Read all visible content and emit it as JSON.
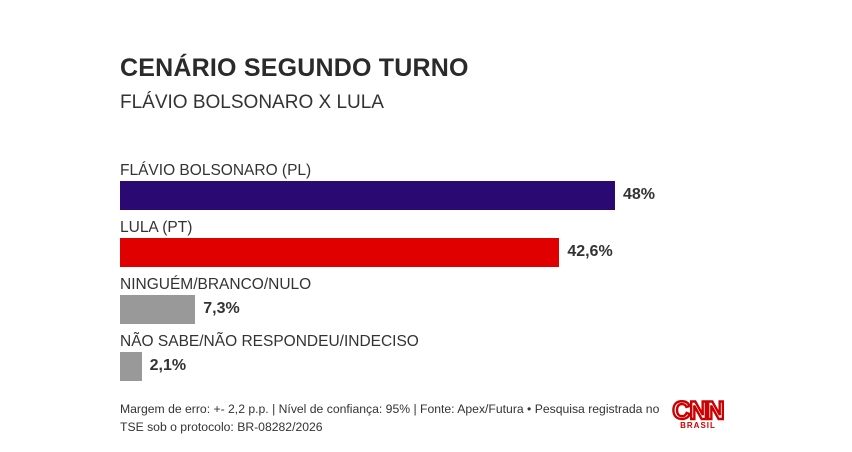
{
  "header": {
    "title": "CENÁRIO SEGUNDO TURNO",
    "subtitle": "FLÁVIO BOLSONARO X LULA"
  },
  "chart_data": {
    "type": "bar",
    "orientation": "horizontal",
    "categories": [
      "FLÁVIO BOLSONARO (PL)",
      "LULA (PT)",
      "NINGUÉM/BRANCO/NULO",
      "NÃO SABE/NÃO RESPONDEU/INDECISO"
    ],
    "values": [
      48,
      42.6,
      7.3,
      2.1
    ],
    "value_labels": [
      "48%",
      "42,6%",
      "7,3%",
      "2,1%"
    ],
    "colors": [
      "#2a0a72",
      "#e00000",
      "#999999",
      "#999999"
    ],
    "unit": "%",
    "title": "CENÁRIO SEGUNDO TURNO",
    "subtitle": "FLÁVIO BOLSONARO X LULA",
    "grid": false,
    "legend": "none"
  },
  "footer": {
    "note": "Margem de erro: +- 2,2 p.p. | Nível de confiança: 95% | Fonte: Apex/Futura • Pesquisa registrada no TSE sob o protocolo: BR-08282/2026",
    "logo_text": "CNN",
    "logo_subtext": "BRASIL",
    "logo_color": "#cc0000"
  }
}
